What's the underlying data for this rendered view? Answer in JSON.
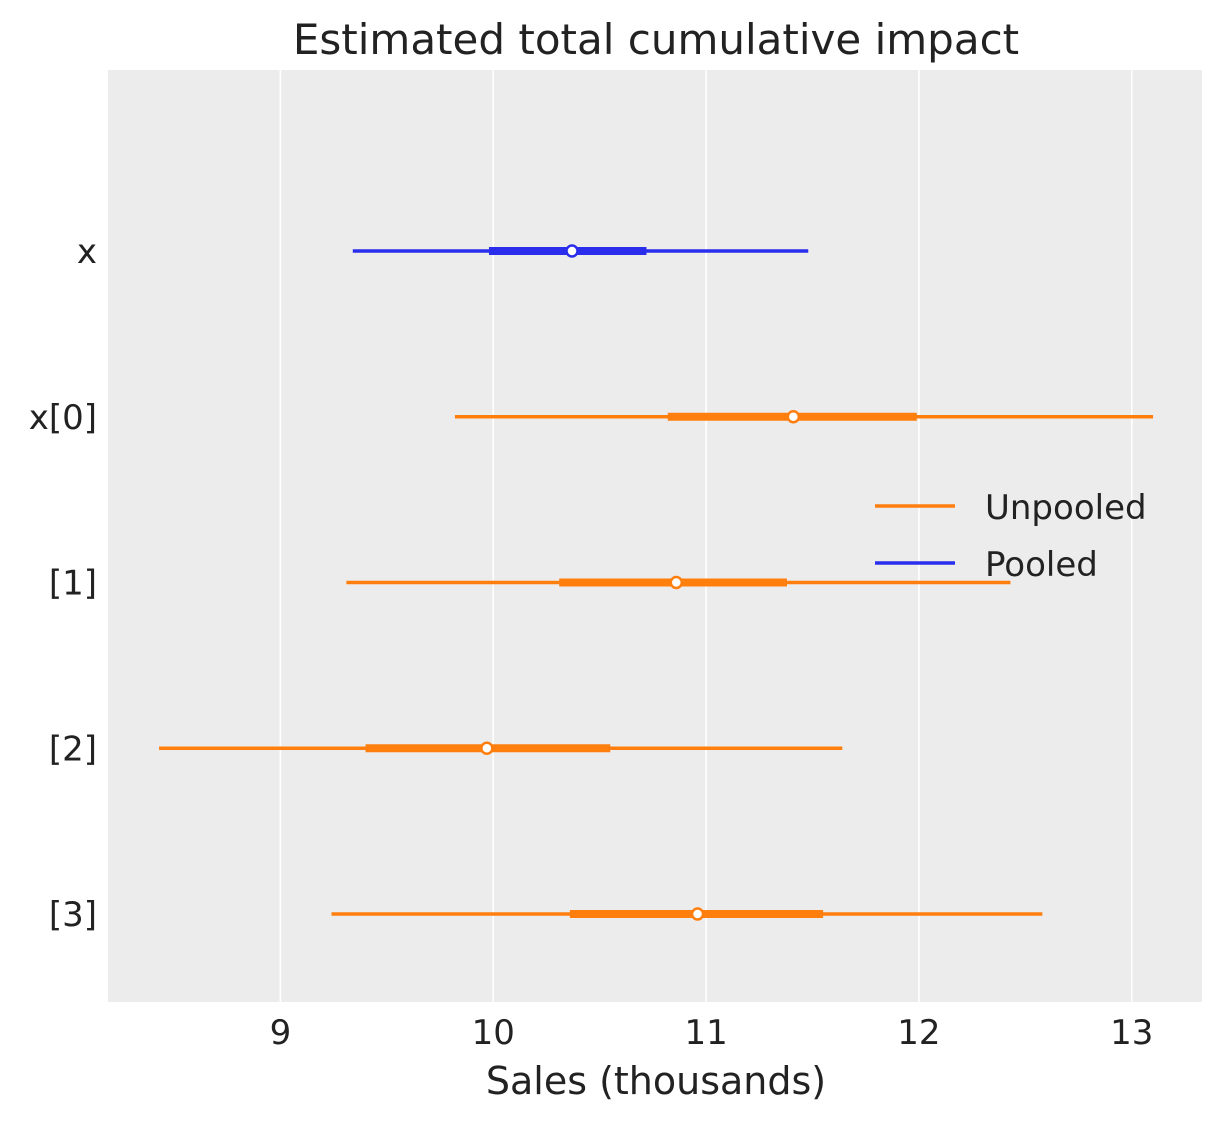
{
  "chart_data": {
    "type": "forest",
    "title": "Estimated total cumulative impact",
    "xlabel": "Sales (thousands)",
    "ylabel": "",
    "xlim": [
      8.19,
      13.33
    ],
    "xticks": [
      9,
      10,
      11,
      12,
      13
    ],
    "xtick_labels": [
      "9",
      "10",
      "11",
      "12",
      "13"
    ],
    "grid": "vertical",
    "background": "#ececec",
    "legend": {
      "placement": "right",
      "entries": [
        {
          "label": "Unpooled",
          "color": "#ff7f0e"
        },
        {
          "label": "Pooled",
          "color": "#2a2eec"
        }
      ]
    },
    "rows": [
      {
        "label": "x",
        "series": "Pooled",
        "color": "#2a2eec",
        "hdi_low": 9.34,
        "hdi_high": 11.48,
        "iqr_low": 9.98,
        "iqr_high": 10.72,
        "point": 10.37
      },
      {
        "label": "x[0]",
        "series": "Unpooled",
        "color": "#ff7f0e",
        "hdi_low": 9.82,
        "hdi_high": 13.1,
        "iqr_low": 10.82,
        "iqr_high": 11.99,
        "point": 11.41
      },
      {
        "label": "[1]",
        "series": "Unpooled",
        "color": "#ff7f0e",
        "hdi_low": 9.31,
        "hdi_high": 12.43,
        "iqr_low": 10.31,
        "iqr_high": 11.38,
        "point": 10.86
      },
      {
        "label": "[2]",
        "series": "Unpooled",
        "color": "#ff7f0e",
        "hdi_low": 8.43,
        "hdi_high": 11.64,
        "iqr_low": 9.4,
        "iqr_high": 10.55,
        "point": 9.97
      },
      {
        "label": "[3]",
        "series": "Unpooled",
        "color": "#ff7f0e",
        "hdi_low": 9.24,
        "hdi_high": 12.58,
        "iqr_low": 10.36,
        "iqr_high": 11.55,
        "point": 10.96
      }
    ]
  }
}
